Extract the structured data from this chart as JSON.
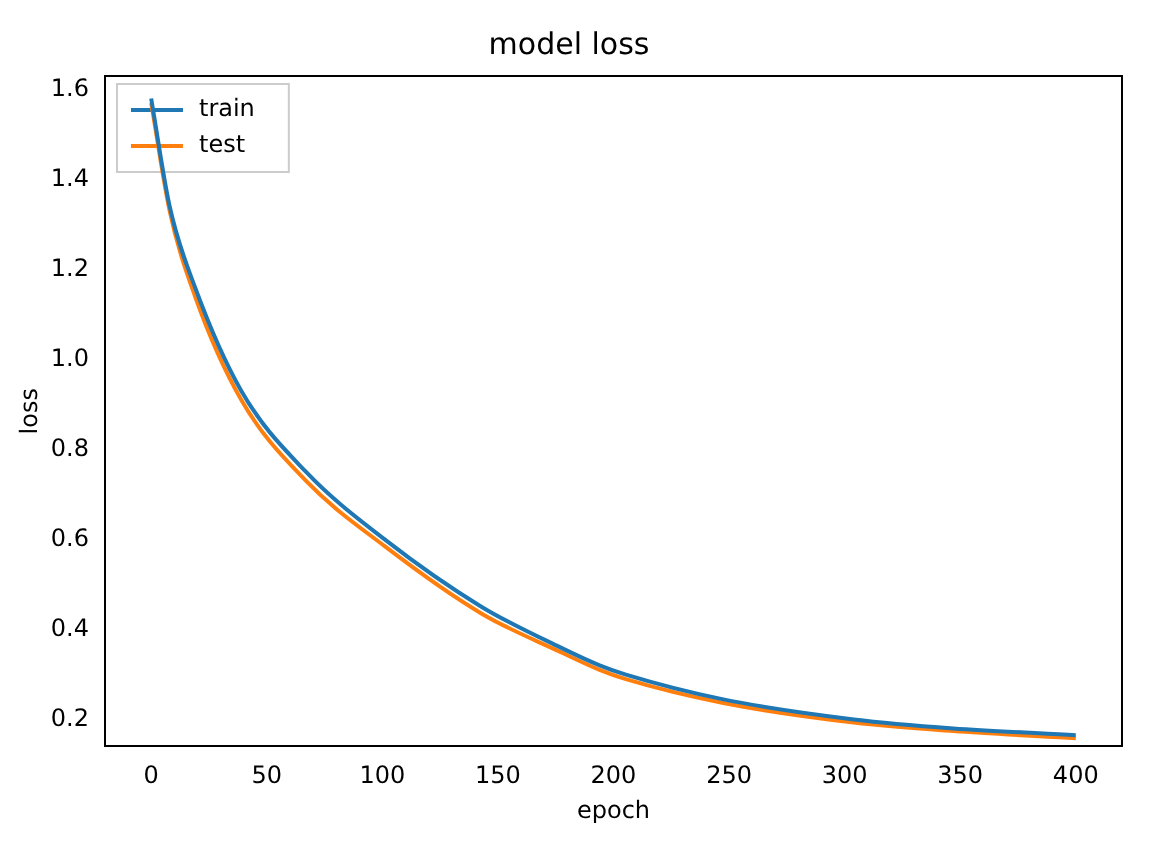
{
  "chart_data": {
    "type": "line",
    "title": "model loss",
    "xlabel": "epoch",
    "ylabel": "loss",
    "xlim": [
      -20,
      420
    ],
    "xticks": [
      0,
      50,
      100,
      150,
      200,
      250,
      300,
      350,
      400
    ],
    "ylim": [
      0.14,
      1.63
    ],
    "yticks": [
      0.2,
      0.4,
      0.6,
      0.8,
      {
        "value": 1,
        "label": "1.0"
      },
      1.2,
      1.4,
      1.6
    ],
    "grid": false,
    "legend": "top left",
    "marker": "none",
    "line_style": "solid",
    "series": [
      {
        "name": "train",
        "color": "#1f77b4",
        "x": [
          0,
          8,
          19,
          39,
          67,
          101,
          143,
          177,
          194,
          205,
          247,
          304,
          347,
          400
        ],
        "values": [
          1.58,
          1.34,
          1.16,
          0.93,
          0.75,
          0.6,
          0.45,
          0.36,
          0.32,
          0.3,
          0.245,
          0.2,
          0.18,
          0.165
        ]
      },
      {
        "name": "test",
        "color": "#ff7f0e",
        "x": [
          0,
          8,
          19,
          39,
          67,
          101,
          143,
          177,
          194,
          205,
          247,
          304,
          347,
          400
        ],
        "values": [
          1.57,
          1.33,
          1.14,
          0.91,
          0.73,
          0.585,
          0.435,
          0.35,
          0.31,
          0.29,
          0.237,
          0.193,
          0.174,
          0.158
        ]
      }
    ]
  }
}
